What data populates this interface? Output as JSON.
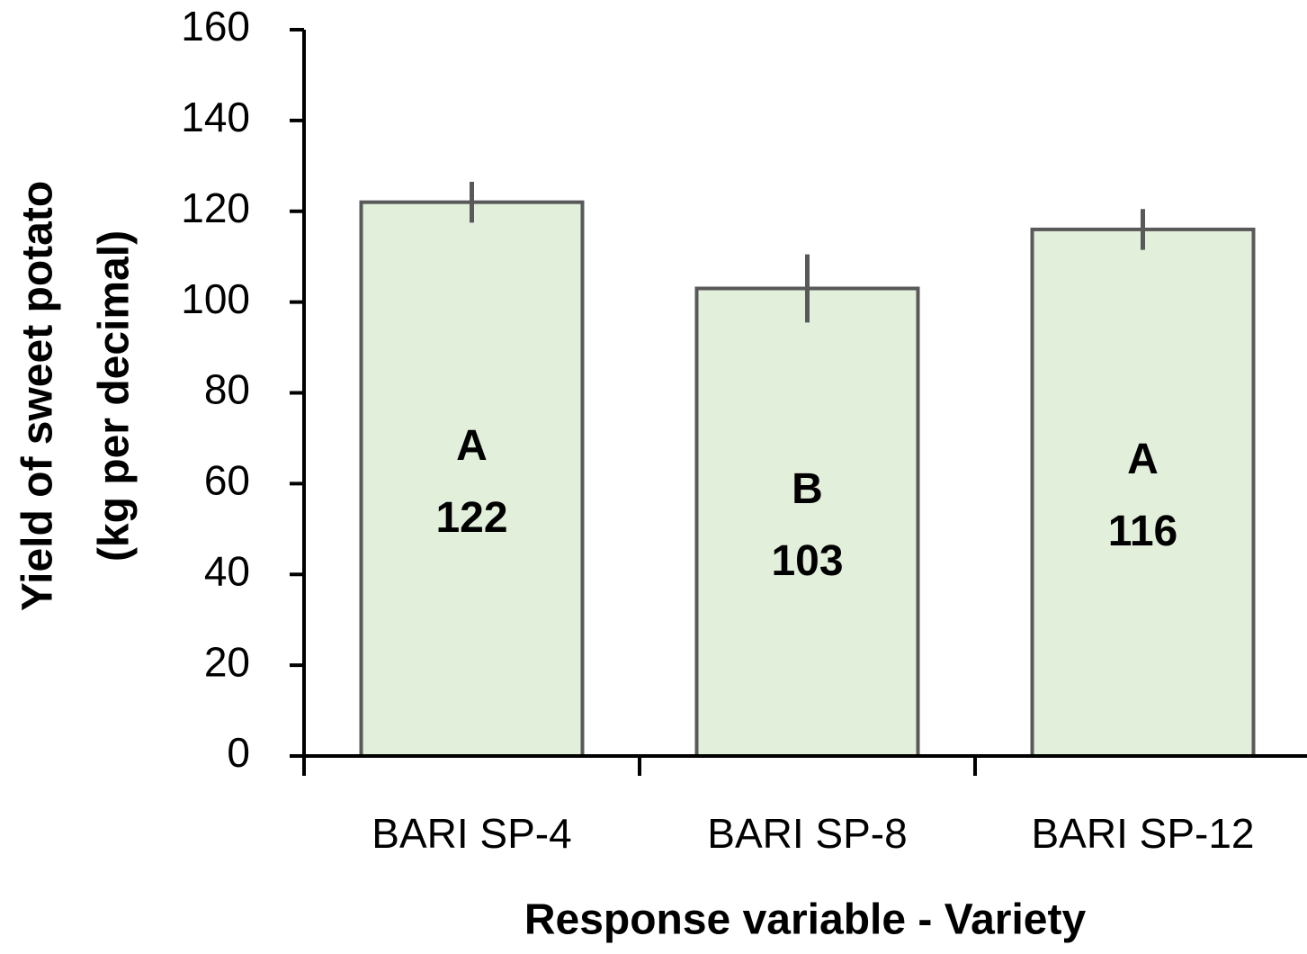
{
  "chart_data": {
    "type": "bar",
    "xlabel": "Response variable - Variety",
    "ylabel": [
      "Yield of sweet potato",
      "(kg per decimal)"
    ],
    "categories": [
      "BARI SP-4",
      "BARI SP-8",
      "BARI SP-12"
    ],
    "values": [
      122,
      103,
      116
    ],
    "errors": [
      4.5,
      7.5,
      4.5
    ],
    "letters": [
      "A",
      "B",
      "A"
    ],
    "color": "#e2efda",
    "edge_color": "#595959",
    "ylim": [
      0,
      160
    ],
    "yticks": [
      0,
      20,
      40,
      60,
      80,
      100,
      120,
      140,
      160
    ],
    "grid": false
  }
}
